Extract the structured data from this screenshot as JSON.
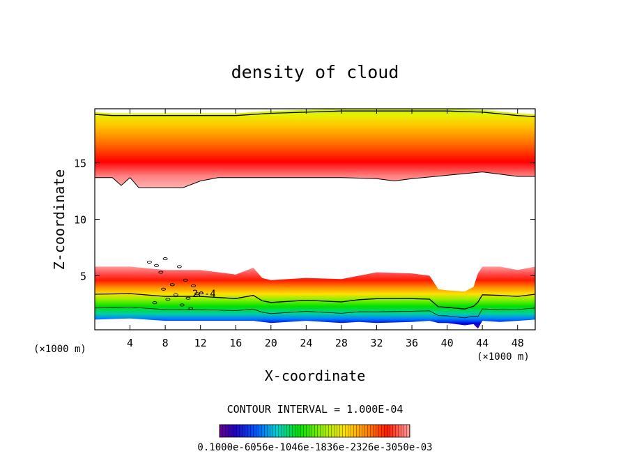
{
  "chart_data": {
    "type": "heatmap",
    "title": "density of cloud",
    "xlabel": "X-coordinate",
    "ylabel": "Z-coordinate",
    "x_unit": "(×1000 m)",
    "y_unit": "(×1000 m)",
    "xlim": [
      0,
      50
    ],
    "ylim": [
      0.2,
      19.8
    ],
    "x_ticks": [
      4,
      8,
      12,
      16,
      20,
      24,
      28,
      32,
      36,
      40,
      44,
      48
    ],
    "y_ticks": [
      5,
      10,
      15
    ],
    "contour_label": "2e-4",
    "contour_interval_text": "CONTOUR INTERVAL = 1.000E-04",
    "colorbar_labels_text": "0.1000e-6056e-1046e-1836e-2326e-3050e-03",
    "upper_cloud_layer": {
      "x": [
        0,
        2,
        3,
        4,
        5,
        6,
        7,
        8,
        10,
        12,
        14,
        16,
        18,
        20,
        24,
        28,
        32,
        34,
        36,
        40,
        44,
        48,
        50
      ],
      "bottom": [
        13.7,
        13.7,
        13.0,
        13.7,
        12.8,
        12.8,
        12.8,
        12.8,
        12.8,
        13.4,
        13.7,
        13.7,
        13.7,
        13.7,
        13.7,
        13.7,
        13.6,
        13.4,
        13.6,
        13.9,
        14.2,
        13.8,
        13.8
      ],
      "top": [
        19.5,
        19.4,
        19.4,
        19.4,
        19.4,
        19.4,
        19.4,
        19.4,
        19.4,
        19.4,
        19.4,
        19.4,
        19.5,
        19.6,
        19.7,
        19.8,
        19.8,
        19.8,
        19.8,
        19.8,
        19.7,
        19.4,
        19.3
      ],
      "max_density_height": 16.0
    },
    "lower_cloud_layer": {
      "x": [
        0,
        4,
        8,
        12,
        16,
        18,
        19,
        20,
        24,
        28,
        30,
        32,
        36,
        38,
        39,
        40,
        42,
        43,
        43.5,
        44,
        46,
        48,
        50
      ],
      "bottom": [
        1.1,
        1.2,
        1.0,
        1.0,
        1.0,
        1.0,
        0.9,
        0.8,
        1.0,
        0.8,
        0.9,
        0.8,
        0.9,
        1.0,
        0.8,
        0.8,
        0.6,
        0.7,
        0.3,
        1.0,
        0.9,
        1.0,
        1.1
      ],
      "top": [
        5.8,
        5.8,
        5.5,
        5.5,
        5.1,
        5.7,
        4.8,
        4.6,
        4.8,
        4.7,
        5.0,
        5.3,
        5.2,
        5.0,
        3.8,
        3.7,
        3.6,
        4.0,
        5.2,
        5.8,
        5.8,
        5.5,
        5.8
      ]
    }
  }
}
